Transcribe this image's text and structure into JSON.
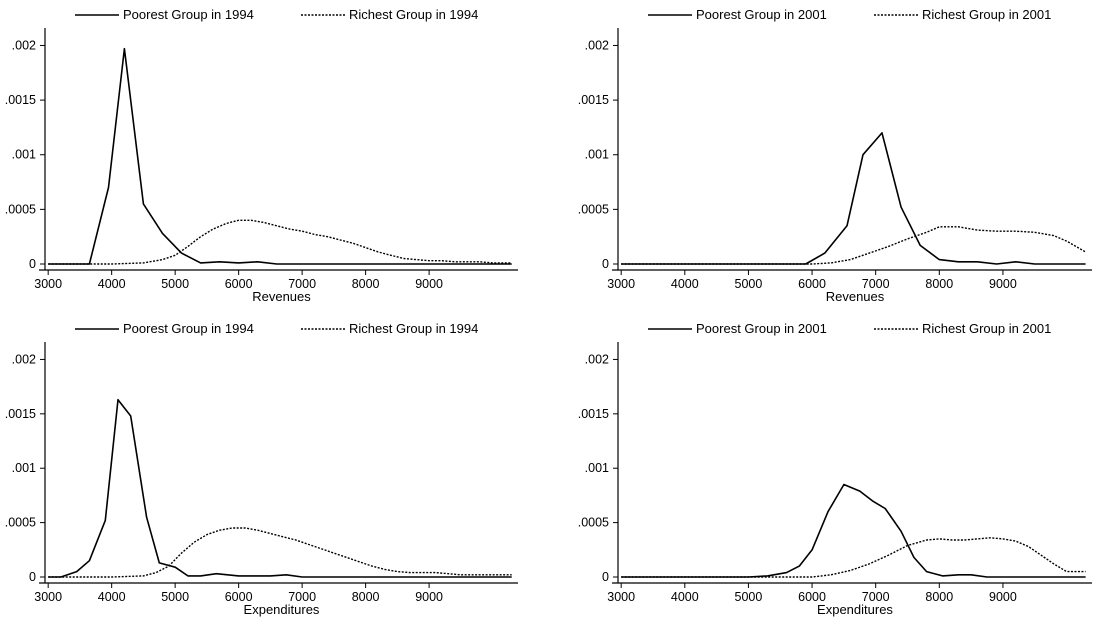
{
  "chart_data": [
    {
      "type": "line",
      "xlabel": "Revenues",
      "xticks": [
        3000,
        4000,
        5000,
        6000,
        7000,
        8000,
        9000
      ],
      "yticks": [
        ".002",
        ".0015",
        ".001",
        ".0005",
        "0"
      ],
      "xlim": [
        2950,
        10400
      ],
      "ylim": [
        0,
        0.00205
      ],
      "legend_position": "top",
      "series": [
        {
          "name": "Poorest Group in 1994",
          "style": "solid",
          "x": [
            3000,
            3200,
            3400,
            3650,
            3950,
            4200,
            4500,
            4800,
            5100,
            5400,
            5700,
            6000,
            6300,
            6600,
            7000,
            8000,
            9000,
            10300
          ],
          "y": [
            0,
            0,
            0,
            0,
            0.0007,
            0.00197,
            0.00055,
            0.00028,
            0.0001,
            1e-05,
            2e-05,
            1e-05,
            2e-05,
            0,
            0,
            0,
            0,
            0
          ]
        },
        {
          "name": "Richest Group in 1994",
          "style": "dashed",
          "x": [
            3000,
            4000,
            4500,
            4800,
            5000,
            5200,
            5400,
            5600,
            5800,
            6000,
            6200,
            6400,
            6600,
            6800,
            7000,
            7200,
            7400,
            7600,
            7800,
            8000,
            8200,
            8400,
            8600,
            8800,
            9000,
            9200,
            9400,
            9600,
            9800,
            10000,
            10300
          ],
          "y": [
            0,
            0,
            1e-05,
            4e-05,
            8e-05,
            0.00016,
            0.00025,
            0.00032,
            0.00037,
            0.0004,
            0.0004,
            0.00038,
            0.00035,
            0.00032,
            0.0003,
            0.00027,
            0.00025,
            0.00022,
            0.00019,
            0.00015,
            0.00011,
            8e-05,
            5e-05,
            4e-05,
            3e-05,
            3e-05,
            2e-05,
            2e-05,
            2e-05,
            1e-05,
            1e-05
          ]
        }
      ]
    },
    {
      "type": "line",
      "xlabel": "Revenues",
      "xticks": [
        3000,
        4000,
        5000,
        6000,
        7000,
        8000,
        9000
      ],
      "yticks": [
        ".002",
        ".0015",
        ".001",
        ".0005",
        "0"
      ],
      "xlim": [
        2950,
        10400
      ],
      "ylim": [
        0,
        0.00205
      ],
      "legend_position": "top",
      "series": [
        {
          "name": "Poorest Group in 2001",
          "style": "solid",
          "x": [
            3000,
            4000,
            5000,
            5900,
            6200,
            6550,
            6800,
            7100,
            7400,
            7700,
            8000,
            8300,
            8600,
            8900,
            9200,
            9500,
            10300
          ],
          "y": [
            0,
            0,
            0,
            0,
            0.0001,
            0.00035,
            0.001,
            0.0012,
            0.00052,
            0.00017,
            4e-05,
            2e-05,
            2e-05,
            0,
            2e-05,
            0,
            0
          ]
        },
        {
          "name": "Richest Group in 2001",
          "style": "dashed",
          "x": [
            3000,
            5000,
            6000,
            6300,
            6600,
            6900,
            7200,
            7500,
            7800,
            8000,
            8300,
            8600,
            8900,
            9200,
            9500,
            9800,
            10000,
            10300
          ],
          "y": [
            0,
            0,
            0,
            1e-05,
            4e-05,
            0.0001,
            0.00016,
            0.00023,
            0.00029,
            0.00034,
            0.00034,
            0.00031,
            0.0003,
            0.0003,
            0.00029,
            0.00026,
            0.00021,
            0.00011
          ]
        }
      ]
    },
    {
      "type": "line",
      "xlabel": "Expenditures",
      "xticks": [
        3000,
        4000,
        5000,
        6000,
        7000,
        8000,
        9000
      ],
      "yticks": [
        ".002",
        ".0015",
        ".001",
        ".0005",
        "0"
      ],
      "xlim": [
        2950,
        10400
      ],
      "ylim": [
        0,
        0.00205
      ],
      "legend_position": "top",
      "series": [
        {
          "name": "Poorest Group in 1994",
          "style": "solid",
          "x": [
            3000,
            3200,
            3450,
            3650,
            3900,
            4100,
            4300,
            4550,
            4750,
            5000,
            5200,
            5400,
            5650,
            6000,
            6500,
            6750,
            7000,
            8000,
            9000,
            10300
          ],
          "y": [
            0,
            0,
            5e-05,
            0.00015,
            0.00052,
            0.00163,
            0.00148,
            0.00055,
            0.00013,
            9e-05,
            1e-05,
            1e-05,
            3e-05,
            1e-05,
            1e-05,
            2e-05,
            0,
            0,
            0,
            0
          ]
        },
        {
          "name": "Richest Group in 1994",
          "style": "dashed",
          "x": [
            3000,
            4000,
            4500,
            4700,
            4900,
            5100,
            5300,
            5500,
            5700,
            5900,
            6100,
            6300,
            6500,
            6700,
            6900,
            7100,
            7300,
            7500,
            7700,
            7900,
            8100,
            8300,
            8500,
            8700,
            8900,
            9100,
            9300,
            9500,
            9700,
            10000,
            10300
          ],
          "y": [
            0,
            0,
            1e-05,
            4e-05,
            0.0001,
            0.00022,
            0.00032,
            0.00039,
            0.00043,
            0.00045,
            0.00045,
            0.00043,
            0.0004,
            0.00037,
            0.00034,
            0.0003,
            0.00026,
            0.00022,
            0.00018,
            0.00014,
            0.0001,
            7e-05,
            5e-05,
            4e-05,
            4e-05,
            4e-05,
            3e-05,
            2e-05,
            2e-05,
            2e-05,
            2e-05
          ]
        }
      ]
    },
    {
      "type": "line",
      "xlabel": "Expenditures",
      "xticks": [
        3000,
        4000,
        5000,
        6000,
        7000,
        8000,
        9000
      ],
      "yticks": [
        ".002",
        ".0015",
        ".001",
        ".0005",
        "0"
      ],
      "xlim": [
        2950,
        10400
      ],
      "ylim": [
        0,
        0.00205
      ],
      "legend_position": "top",
      "series": [
        {
          "name": "Poorest Group in 2001",
          "style": "solid",
          "x": [
            3000,
            4000,
            5000,
            5300,
            5600,
            5800,
            6000,
            6250,
            6500,
            6750,
            6950,
            7150,
            7400,
            7600,
            7800,
            8050,
            8300,
            8500,
            8750,
            9000,
            10300
          ],
          "y": [
            0,
            0,
            0,
            1e-05,
            4e-05,
            0.0001,
            0.00025,
            0.0006,
            0.00085,
            0.00079,
            0.0007,
            0.00063,
            0.00042,
            0.00018,
            5e-05,
            1e-05,
            2e-05,
            2e-05,
            0,
            0,
            0
          ]
        },
        {
          "name": "Richest Group in 2001",
          "style": "dashed",
          "x": [
            3000,
            5000,
            6000,
            6300,
            6600,
            6900,
            7200,
            7500,
            7800,
            8000,
            8200,
            8400,
            8600,
            8800,
            9000,
            9200,
            9400,
            9600,
            9800,
            10000,
            10300
          ],
          "y": [
            0,
            0,
            0,
            2e-05,
            6e-05,
            0.00012,
            0.0002,
            0.00029,
            0.00034,
            0.00035,
            0.00034,
            0.00034,
            0.00035,
            0.00036,
            0.00035,
            0.00033,
            0.00028,
            0.0002,
            0.00012,
            5e-05,
            5e-05
          ]
        }
      ]
    }
  ]
}
